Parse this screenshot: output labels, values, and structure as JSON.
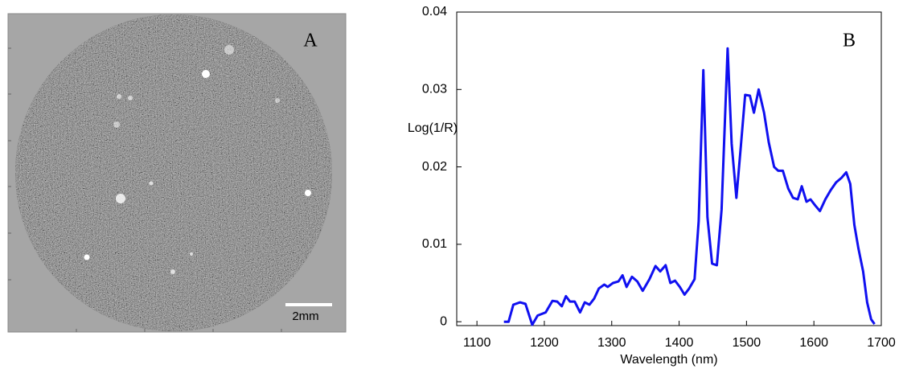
{
  "image_panel": {
    "label": "A",
    "scale_bar": "2mm"
  },
  "chart_data": {
    "type": "line",
    "label": "B",
    "xlabel": "Wavelength (nm)",
    "ylabel": "Log(1/R)",
    "x": [
      1140,
      1147,
      1154,
      1164,
      1172,
      1182,
      1190,
      1202,
      1212,
      1219,
      1226,
      1232,
      1238,
      1245,
      1253,
      1260,
      1267,
      1274,
      1281,
      1289,
      1294,
      1302,
      1310,
      1316,
      1322,
      1330,
      1338,
      1346,
      1356,
      1365,
      1372,
      1380,
      1387,
      1394,
      1401,
      1408,
      1415,
      1423,
      1429,
      1436,
      1442,
      1449,
      1456,
      1463,
      1472,
      1478,
      1485,
      1491,
      1498,
      1505,
      1511,
      1518,
      1526,
      1533,
      1541,
      1547,
      1554,
      1562,
      1569,
      1576,
      1582,
      1589,
      1595,
      1602,
      1609,
      1617,
      1625,
      1633,
      1641,
      1648,
      1654,
      1660,
      1666,
      1673,
      1679,
      1685,
      1690
    ],
    "series": [
      {
        "name": "Log(1/R)",
        "color": "#1010f0",
        "values": [
          0,
          0,
          0.0022,
          0.0025,
          0.0023,
          -0.0004,
          0.0008,
          0.0012,
          0.0027,
          0.0026,
          0.002,
          0.0033,
          0.0026,
          0.0026,
          0.0012,
          0.0025,
          0.0022,
          0.003,
          0.0043,
          0.0048,
          0.0045,
          0.005,
          0.0052,
          0.006,
          0.0045,
          0.0058,
          0.0052,
          0.004,
          0.0055,
          0.0072,
          0.0065,
          0.0073,
          0.005,
          0.0053,
          0.0045,
          0.0035,
          0.0043,
          0.0055,
          0.013,
          0.0325,
          0.0135,
          0.0075,
          0.0073,
          0.0145,
          0.0353,
          0.023,
          0.016,
          0.022,
          0.0293,
          0.0292,
          0.027,
          0.03,
          0.027,
          0.0232,
          0.02,
          0.0195,
          0.0195,
          0.0172,
          0.016,
          0.0158,
          0.0175,
          0.0155,
          0.0158,
          0.015,
          0.0143,
          0.0158,
          0.017,
          0.018,
          0.0186,
          0.0193,
          0.0178,
          0.0125,
          0.0095,
          0.0065,
          0.0025,
          0.0003,
          -0.0003
        ]
      }
    ],
    "xlim": [
      1070,
      1700
    ],
    "xticks": [
      1100,
      1200,
      1300,
      1400,
      1500,
      1600,
      1700
    ],
    "ylim": [
      -0.0005,
      0.04
    ],
    "yticks": [
      0,
      0.01,
      0.02,
      0.03,
      0.04
    ]
  }
}
